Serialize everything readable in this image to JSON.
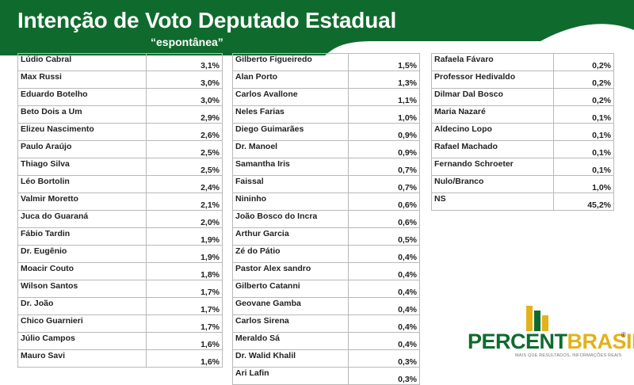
{
  "chart_data": {
    "type": "table",
    "title": "Intenção de Voto Deputado Estadual",
    "subtitle": "“espontânea”",
    "columns": [
      [
        {
          "name": "Lúdio Cabral",
          "value": "3,1%"
        },
        {
          "name": "Max Russi",
          "value": "3,0%"
        },
        {
          "name": "Eduardo Botelho",
          "value": "3,0%"
        },
        {
          "name": "Beto Dois a Um",
          "value": "2,9%"
        },
        {
          "name": "Elizeu Nascimento",
          "value": "2,6%"
        },
        {
          "name": "Paulo Araújo",
          "value": "2,5%"
        },
        {
          "name": "Thiago Silva",
          "value": "2,5%"
        },
        {
          "name": "Léo Bortolin",
          "value": "2,4%"
        },
        {
          "name": "Valmir Moretto",
          "value": "2,1%"
        },
        {
          "name": "Juca do Guaraná",
          "value": "2,0%"
        },
        {
          "name": "Fábio Tardin",
          "value": "1,9%"
        },
        {
          "name": "Dr. Eugênio",
          "value": "1,9%"
        },
        {
          "name": "Moacir Couto",
          "value": "1,8%"
        },
        {
          "name": "Wilson Santos",
          "value": "1,7%"
        },
        {
          "name": "Dr. João",
          "value": "1,7%"
        },
        {
          "name": "Chico Guarnieri",
          "value": "1,7%"
        },
        {
          "name": "Júlio Campos",
          "value": "1,6%"
        },
        {
          "name": "Mauro Savi",
          "value": "1,6%"
        }
      ],
      [
        {
          "name": "Gilberto Figueiredo",
          "value": "1,5%"
        },
        {
          "name": "Alan Porto",
          "value": "1,3%"
        },
        {
          "name": "Carlos Avallone",
          "value": "1,1%"
        },
        {
          "name": "Neles Farias",
          "value": "1,0%"
        },
        {
          "name": "Diego Guimarães",
          "value": "0,9%"
        },
        {
          "name": "Dr. Manoel",
          "value": "0,9%"
        },
        {
          "name": "Samantha Iris",
          "value": "0,7%"
        },
        {
          "name": "Faissal",
          "value": "0,7%"
        },
        {
          "name": "Nininho",
          "value": "0,6%"
        },
        {
          "name": "João Bosco do Incra",
          "value": "0,6%"
        },
        {
          "name": "Arthur Garcia",
          "value": "0,5%"
        },
        {
          "name": "Zé do Pátio",
          "value": "0,4%"
        },
        {
          "name": "Pastor Alex sandro",
          "value": "0,4%"
        },
        {
          "name": "Gilberto Catanni",
          "value": "0,4%"
        },
        {
          "name": "Geovane Gamba",
          "value": "0,4%"
        },
        {
          "name": "Carlos Sirena",
          "value": "0,4%"
        },
        {
          "name": "Meraldo Sá",
          "value": "0,4%"
        },
        {
          "name": "Dr. Walid Khalil",
          "value": "0,3%"
        },
        {
          "name": "Ari Lafin",
          "value": "0,3%"
        }
      ],
      [
        {
          "name": "Rafaela Fávaro",
          "value": "0,2%"
        },
        {
          "name": "Professor Hedivaldo",
          "value": "0,2%"
        },
        {
          "name": "Dilmar Dal Bosco",
          "value": "0,2%"
        },
        {
          "name": "Maria Nazaré",
          "value": "0,1%"
        },
        {
          "name": "Aldecino Lopo",
          "value": "0,1%"
        },
        {
          "name": "Rafael Machado",
          "value": "0,1%"
        },
        {
          "name": "Fernando Schroeter",
          "value": "0,1%"
        },
        {
          "name": "Nulo/Branco",
          "value": "1,0%"
        },
        {
          "name": "NS",
          "value": "45,2%"
        }
      ]
    ]
  },
  "logo": {
    "word_part1": "PERCENT",
    "word_part2": "BRASIL",
    "registered": "®",
    "tagline": "MAIS QUE RESULTADOS, INFORMAÇÕES REAIS"
  },
  "colors": {
    "header_green": "#0f6b2d",
    "logo_yellow": "#e3b21a"
  }
}
